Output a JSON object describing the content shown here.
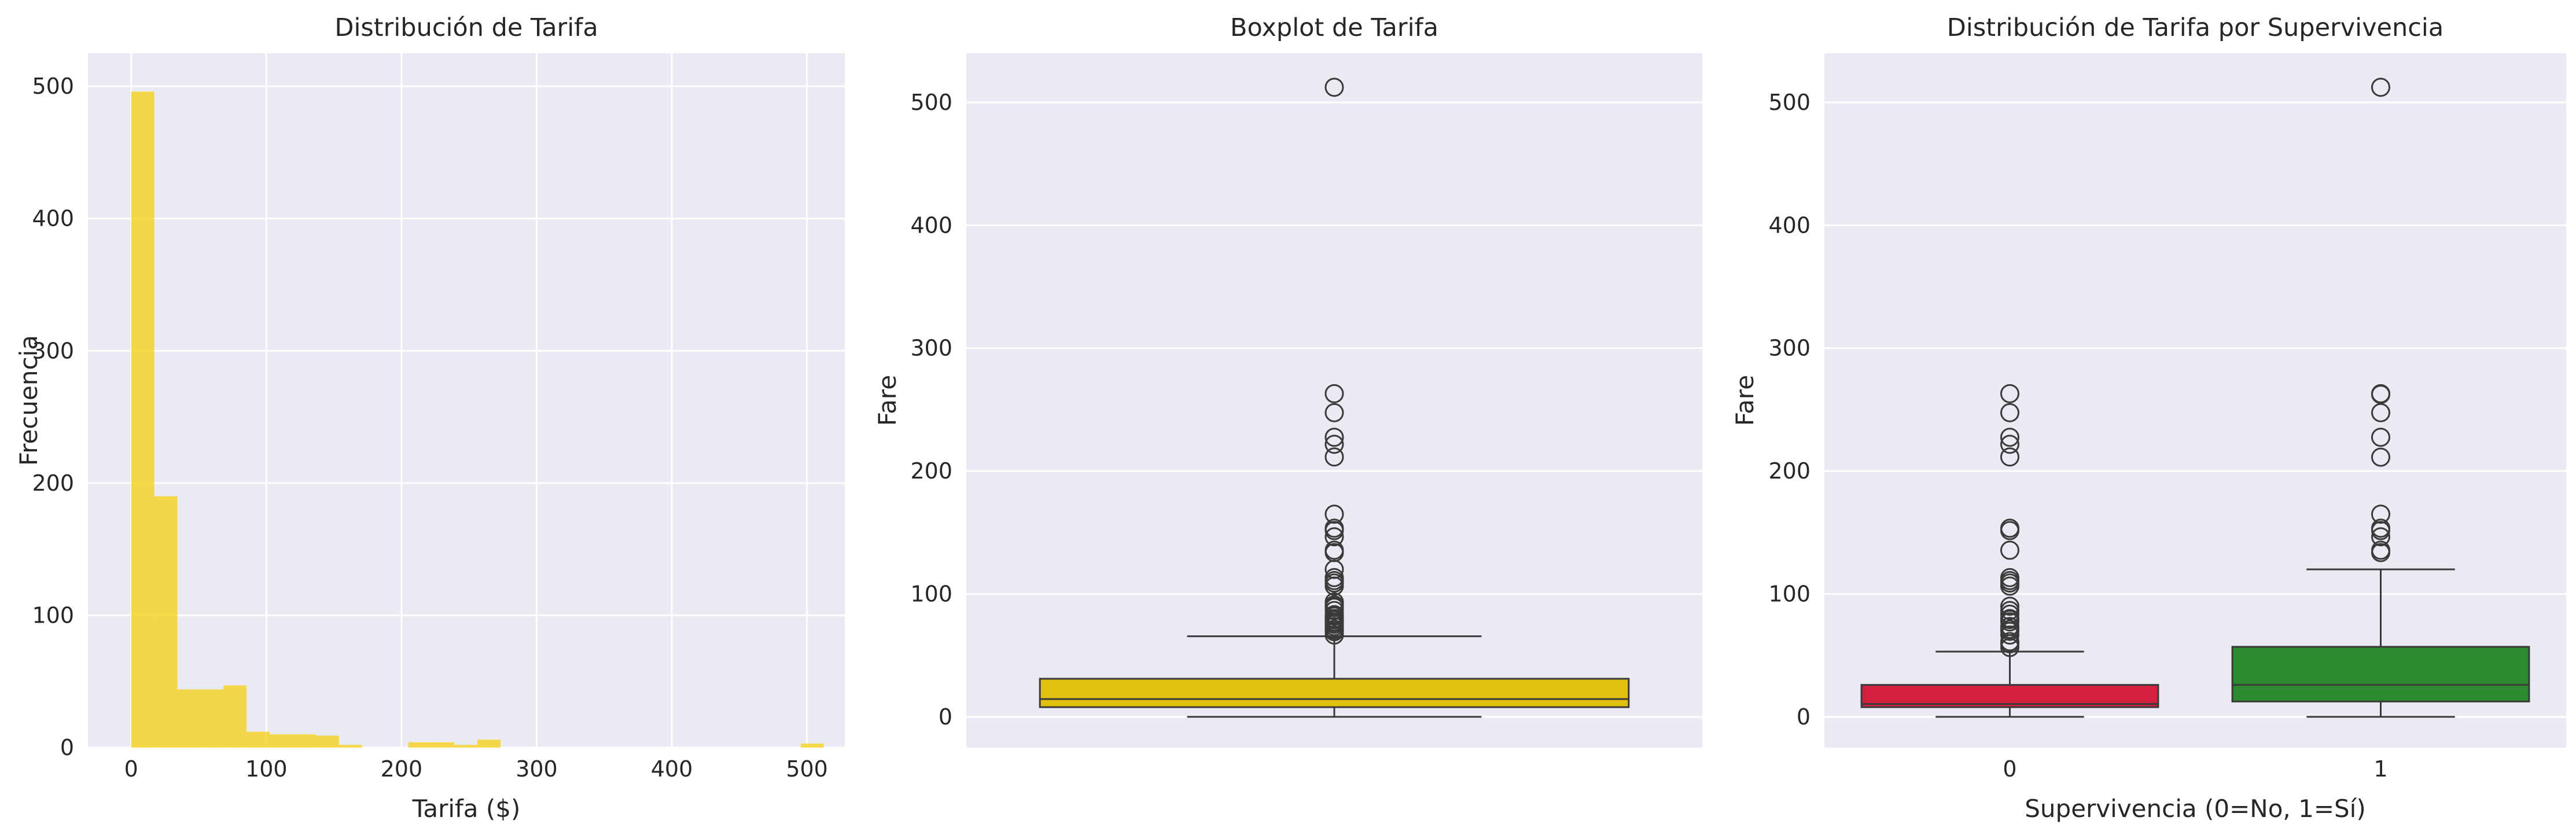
{
  "chart_data": [
    {
      "type": "bar",
      "title": "Distribución de Tarifa",
      "xlabel": "Tarifa ($)",
      "ylabel": "Frecuencia",
      "xlim": [
        -32,
        528
      ],
      "ylim": [
        0,
        525
      ],
      "xticks": [
        0,
        100,
        200,
        300,
        400,
        500
      ],
      "yticks": [
        0,
        100,
        200,
        300,
        400,
        500
      ],
      "bin_width": 17.08,
      "bin_start": 0,
      "values": [
        496,
        190,
        44,
        44,
        47,
        12,
        10,
        10,
        9,
        2,
        0,
        0,
        4,
        4,
        2,
        6,
        0,
        0,
        0,
        0,
        0,
        0,
        0,
        0,
        0,
        0,
        0,
        0,
        0,
        3
      ],
      "color": "#f6d42a",
      "grid": true
    },
    {
      "type": "box",
      "title": "Boxplot de Tarifa",
      "xlabel": "",
      "ylabel": "Fare",
      "ylim": [
        -25,
        540
      ],
      "yticks": [
        0,
        100,
        200,
        300,
        400,
        500
      ],
      "box": {
        "min": 0,
        "q1": 7.9,
        "median": 14.5,
        "q3": 31,
        "max": 65.6
      },
      "outliers": [
        512.3,
        263,
        247.5,
        227.5,
        221.8,
        211.5,
        164.9,
        153.5,
        151.6,
        146.5,
        135.6,
        133.7,
        120,
        113.3,
        110.9,
        108.9,
        106.4,
        93.5,
        91.1,
        90,
        89.1,
        86.5,
        83.2,
        82.2,
        81.9,
        80,
        79.2,
        78.9,
        77.3,
        76.7,
        75.3,
        73.5,
        71.3,
        71,
        69.6,
        69.3,
        66.6
      ],
      "color": "#e2c111",
      "grid": true
    },
    {
      "type": "box",
      "title": "Distribución de Tarifa por Supervivencia",
      "xlabel": "Supervivencia (0=No, 1=Sí)",
      "ylabel": "Fare",
      "ylim": [
        -25,
        540
      ],
      "yticks": [
        0,
        100,
        200,
        300,
        400,
        500
      ],
      "categories": [
        "0",
        "1"
      ],
      "boxes": [
        {
          "category": "0",
          "min": 0,
          "q1": 7.9,
          "median": 10.5,
          "q3": 26,
          "max": 53.1,
          "outliers": [
            263,
            247.5,
            227.5,
            221.8,
            211.5,
            153.5,
            151.6,
            135.6,
            113.3,
            110.9,
            108.9,
            106.4,
            90,
            86.5,
            83.5,
            80,
            79.2,
            77.3,
            73.5,
            71.3,
            69.6,
            66.6,
            61.2,
            59.4,
            56.5
          ],
          "color": "#d3203f"
        },
        {
          "category": "1",
          "min": 0,
          "q1": 12.5,
          "median": 26,
          "q3": 57,
          "max": 120,
          "outliers": [
            512.3,
            263,
            262.4,
            247.5,
            227.5,
            211.3,
            164.9,
            153.5,
            151.6,
            146.5,
            135.6,
            133.7
          ],
          "color": "#2e8a2e"
        }
      ],
      "grid": true
    }
  ]
}
